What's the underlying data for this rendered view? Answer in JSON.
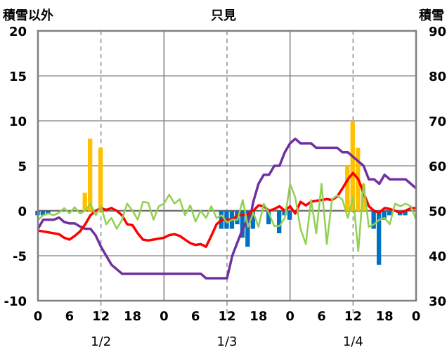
{
  "chart_data": {
    "type": "bar+line",
    "title": "只見",
    "left_axis_label": "積雪以外",
    "right_axis_label": "積雪",
    "left_ylim": [
      -10,
      20
    ],
    "left_yticks": [
      20,
      15,
      10,
      5,
      0,
      -5,
      -10
    ],
    "right_ylim": [
      30,
      90
    ],
    "right_yticks": [
      90,
      80,
      70,
      60,
      50,
      40,
      30
    ],
    "x_tick_labels": [
      "0",
      "6",
      "12",
      "18",
      "0",
      "6",
      "12",
      "18",
      "0",
      "6",
      "12",
      "18",
      "0"
    ],
    "x_tick_hours": [
      0,
      6,
      12,
      18,
      24,
      30,
      36,
      42,
      48,
      54,
      60,
      66,
      72
    ],
    "date_labels": [
      {
        "hour": 12,
        "label": "1/2"
      },
      {
        "hour": 36,
        "label": "1/3"
      },
      {
        "hour": 60,
        "label": "1/4"
      }
    ],
    "grid": {
      "solid_vertical_hours": [
        24,
        48
      ],
      "dashed_vertical_hours": [
        12,
        36,
        60
      ],
      "horizontal": "left ticks"
    },
    "colors": {
      "yellow_bar": "#ffc000",
      "blue_bar": "#0070c0",
      "red_line": "#ff0000",
      "purple_line": "#7030a0",
      "green_line": "#92d050",
      "grid": "#808080"
    },
    "series": [
      {
        "kind": "bar",
        "color_key": "yellow_bar",
        "axis": "left",
        "values": [
          [
            9,
            2
          ],
          [
            10,
            8
          ],
          [
            12,
            7
          ],
          [
            59,
            5
          ],
          [
            60,
            10
          ],
          [
            61,
            7
          ],
          [
            62,
            3
          ]
        ]
      },
      {
        "kind": "bar",
        "color_key": "blue_bar",
        "axis": "left",
        "values": [
          [
            0,
            -0.5
          ],
          [
            1,
            -0.5
          ],
          [
            2,
            -0.3
          ],
          [
            35,
            -2
          ],
          [
            36,
            -2
          ],
          [
            37,
            -2
          ],
          [
            38,
            -1.5
          ],
          [
            39,
            -3
          ],
          [
            40,
            -4
          ],
          [
            41,
            -2
          ],
          [
            44,
            -1.5
          ],
          [
            46,
            -2.5
          ],
          [
            47,
            -0.5
          ],
          [
            48,
            -1
          ],
          [
            64,
            -2
          ],
          [
            65,
            -6
          ],
          [
            66,
            -1
          ],
          [
            67,
            -0.5
          ],
          [
            69,
            -0.5
          ],
          [
            70,
            -0.5
          ]
        ]
      },
      {
        "kind": "line",
        "color_key": "red_line",
        "axis": "left",
        "values": [
          [
            0,
            -2.2
          ],
          [
            2,
            -2.4
          ],
          [
            4,
            -2.6
          ],
          [
            5,
            -3
          ],
          [
            6,
            -3.2
          ],
          [
            7,
            -2.8
          ],
          [
            8,
            -2.3
          ],
          [
            9,
            -1.5
          ],
          [
            10,
            -0.5
          ],
          [
            11,
            0
          ],
          [
            12,
            0.3
          ],
          [
            13,
            0.1
          ],
          [
            14,
            0.3
          ],
          [
            15,
            0
          ],
          [
            16,
            -0.5
          ],
          [
            17,
            -1.5
          ],
          [
            18,
            -1.6
          ],
          [
            19,
            -2.5
          ],
          [
            20,
            -3.2
          ],
          [
            21,
            -3.3
          ],
          [
            22,
            -3.2
          ],
          [
            24,
            -3
          ],
          [
            25,
            -2.7
          ],
          [
            26,
            -2.6
          ],
          [
            27,
            -2.8
          ],
          [
            28,
            -3.2
          ],
          [
            29,
            -3.6
          ],
          [
            30,
            -3.8
          ],
          [
            31,
            -3.7
          ],
          [
            32,
            -4
          ],
          [
            33,
            -2.8
          ],
          [
            34,
            -1.5
          ],
          [
            35,
            -1
          ],
          [
            36,
            -1
          ],
          [
            37,
            -1
          ],
          [
            38,
            -0.5
          ],
          [
            40,
            -0.4
          ],
          [
            41,
            0
          ],
          [
            42,
            0.6
          ],
          [
            43,
            0.5
          ],
          [
            44,
            0
          ],
          [
            45,
            0.2
          ],
          [
            46,
            0.5
          ],
          [
            47,
            0
          ],
          [
            48,
            0.5
          ],
          [
            49,
            -0.3
          ],
          [
            50,
            1
          ],
          [
            51,
            0.6
          ],
          [
            52,
            1
          ],
          [
            53,
            1.1
          ],
          [
            54,
            1.2
          ],
          [
            55,
            1.3
          ],
          [
            56,
            1.2
          ],
          [
            57,
            1.6
          ],
          [
            58,
            2.5
          ],
          [
            59,
            3.5
          ],
          [
            60,
            4.2
          ],
          [
            61,
            3.5
          ],
          [
            62,
            2
          ],
          [
            63,
            0.5
          ],
          [
            64,
            0
          ],
          [
            65,
            -0.2
          ],
          [
            66,
            0.3
          ],
          [
            67,
            0.2
          ],
          [
            68,
            0
          ],
          [
            69,
            -0.2
          ],
          [
            70,
            0
          ],
          [
            71,
            0.3
          ],
          [
            72,
            0.3
          ]
        ]
      },
      {
        "kind": "line",
        "color_key": "purple_line",
        "axis": "right",
        "values": [
          [
            0,
            46
          ],
          [
            1,
            48
          ],
          [
            3,
            48
          ],
          [
            4,
            48.5
          ],
          [
            5,
            47.5
          ],
          [
            6,
            47.2
          ],
          [
            7,
            47.2
          ],
          [
            8,
            46.5
          ],
          [
            9,
            46
          ],
          [
            10,
            46
          ],
          [
            11,
            44.5
          ],
          [
            12,
            42
          ],
          [
            13,
            40
          ],
          [
            14,
            38
          ],
          [
            15,
            37
          ],
          [
            16,
            36
          ],
          [
            22,
            36
          ],
          [
            31,
            36
          ],
          [
            32,
            35
          ],
          [
            36,
            35
          ],
          [
            37,
            40
          ],
          [
            38,
            43
          ],
          [
            39,
            46
          ],
          [
            40,
            48
          ],
          [
            40.5,
            49
          ],
          [
            41,
            52
          ],
          [
            42,
            56
          ],
          [
            43,
            58
          ],
          [
            44,
            58
          ],
          [
            45,
            60
          ],
          [
            46,
            60
          ],
          [
            47,
            63
          ],
          [
            48,
            65
          ],
          [
            49,
            66
          ],
          [
            50,
            65
          ],
          [
            52,
            65
          ],
          [
            53,
            64
          ],
          [
            57,
            64
          ],
          [
            58,
            63
          ],
          [
            59,
            63
          ],
          [
            60,
            62
          ],
          [
            61,
            61
          ],
          [
            62,
            60
          ],
          [
            63,
            57
          ],
          [
            64,
            57
          ],
          [
            65,
            56
          ],
          [
            66,
            58
          ],
          [
            67,
            57
          ],
          [
            70,
            57
          ],
          [
            72,
            55
          ]
        ]
      },
      {
        "kind": "line",
        "color_key": "green_line",
        "axis": "left",
        "values": [
          [
            0,
            -1
          ],
          [
            1,
            -0.5
          ],
          [
            2,
            -0.3
          ],
          [
            3,
            -0.5
          ],
          [
            4,
            -0.2
          ],
          [
            5,
            0.3
          ],
          [
            6,
            -0.3
          ],
          [
            7,
            0.4
          ],
          [
            8,
            -0.3
          ],
          [
            9,
            0
          ],
          [
            10,
            0.8
          ],
          [
            11,
            -0.5
          ],
          [
            12,
            0.5
          ],
          [
            13,
            -1.5
          ],
          [
            14,
            -0.8
          ],
          [
            15,
            -2
          ],
          [
            16,
            -1
          ],
          [
            17,
            0.8
          ],
          [
            18,
            0
          ],
          [
            19,
            -1
          ],
          [
            20,
            1
          ],
          [
            21,
            0.9
          ],
          [
            22,
            -1
          ],
          [
            23,
            0.5
          ],
          [
            24,
            0.8
          ],
          [
            25,
            1.8
          ],
          [
            26,
            0.8
          ],
          [
            27,
            1.3
          ],
          [
            28,
            -0.5
          ],
          [
            29,
            0.6
          ],
          [
            30,
            -1.2
          ],
          [
            31,
            0
          ],
          [
            32,
            -0.8
          ],
          [
            33,
            0.5
          ],
          [
            34,
            -0.8
          ],
          [
            35,
            -0.5
          ],
          [
            36,
            -1.3
          ],
          [
            37,
            -1
          ],
          [
            38,
            -1
          ],
          [
            39,
            1.2
          ],
          [
            40,
            -1.8
          ],
          [
            41,
            -0.2
          ],
          [
            42,
            -1.8
          ],
          [
            43,
            0.8
          ],
          [
            44,
            -0.3
          ],
          [
            45,
            -1.7
          ],
          [
            46,
            -1.7
          ],
          [
            47,
            -0.8
          ],
          [
            47.5,
            1
          ],
          [
            48,
            3
          ],
          [
            49,
            1.5
          ],
          [
            50,
            -2
          ],
          [
            51,
            -3.7
          ],
          [
            52,
            1.2
          ],
          [
            53,
            -2.5
          ],
          [
            54,
            3
          ],
          [
            55,
            -3.7
          ],
          [
            56,
            1.3
          ],
          [
            57,
            1.7
          ],
          [
            58,
            1.2
          ],
          [
            59,
            -0.8
          ],
          [
            60,
            1.5
          ],
          [
            61,
            -4.5
          ],
          [
            62,
            3
          ],
          [
            63,
            -1.8
          ],
          [
            64,
            -1.5
          ],
          [
            65,
            -1
          ],
          [
            66,
            -0.8
          ],
          [
            67,
            -1.5
          ],
          [
            68,
            0.8
          ],
          [
            69,
            0.5
          ],
          [
            70,
            0.8
          ],
          [
            71,
            0.5
          ],
          [
            72,
            -1
          ]
        ]
      }
    ]
  }
}
